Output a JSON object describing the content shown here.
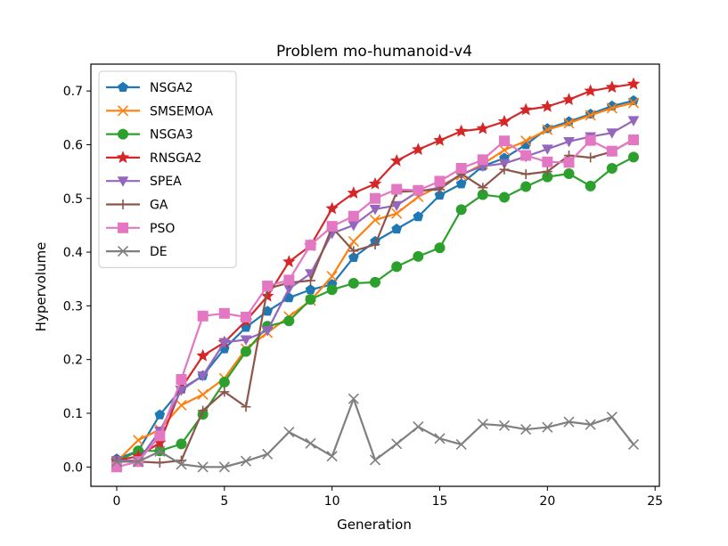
{
  "chart_data": {
    "type": "line",
    "title": "Problem mo-humanoid-v4",
    "xlabel": "Generation",
    "ylabel": "Hypervolume",
    "xlim": [
      -1.2,
      25.2
    ],
    "ylim": [
      -0.036,
      0.75
    ],
    "xticks": [
      0,
      5,
      10,
      15,
      20,
      25
    ],
    "yticks": [
      0.0,
      0.1,
      0.2,
      0.3,
      0.4,
      0.5,
      0.6,
      0.7
    ],
    "xtick_labels": [
      "0",
      "5",
      "10",
      "15",
      "20",
      "25"
    ],
    "ytick_labels": [
      "0.0",
      "0.1",
      "0.2",
      "0.3",
      "0.4",
      "0.5",
      "0.6",
      "0.7"
    ],
    "legend_position": "upper-left",
    "x": [
      0,
      1,
      2,
      3,
      4,
      5,
      6,
      7,
      8,
      9,
      10,
      11,
      12,
      13,
      14,
      15,
      16,
      17,
      18,
      19,
      20,
      21,
      22,
      23,
      24
    ],
    "series": [
      {
        "name": "NSGA2",
        "color": "#1f77b4",
        "marker": "pentagon",
        "values": [
          0.015,
          0.03,
          0.097,
          0.145,
          0.17,
          0.22,
          0.26,
          0.29,
          0.315,
          0.33,
          0.34,
          0.39,
          0.42,
          0.443,
          0.466,
          0.506,
          0.527,
          0.56,
          0.575,
          0.6,
          0.63,
          0.643,
          0.657,
          0.672,
          0.682
        ]
      },
      {
        "name": "SMSEMOA",
        "color": "#ff7f0e",
        "marker": "x",
        "values": [
          0.01,
          0.05,
          0.07,
          0.115,
          0.135,
          0.165,
          0.22,
          0.25,
          0.28,
          0.31,
          0.355,
          0.42,
          0.46,
          0.472,
          0.503,
          0.523,
          0.543,
          0.564,
          0.59,
          0.607,
          0.628,
          0.64,
          0.655,
          0.668,
          0.678
        ]
      },
      {
        "name": "NSGA3",
        "color": "#2ca02c",
        "marker": "circle",
        "values": [
          0.01,
          0.03,
          0.03,
          0.043,
          0.098,
          0.158,
          0.215,
          0.262,
          0.272,
          0.312,
          0.33,
          0.342,
          0.344,
          0.373,
          0.392,
          0.408,
          0.479,
          0.507,
          0.502,
          0.522,
          0.54,
          0.546,
          0.523,
          0.556,
          0.577
        ]
      },
      {
        "name": "RNSGA2",
        "color": "#d62728",
        "marker": "star",
        "values": [
          0.012,
          0.02,
          0.045,
          0.147,
          0.207,
          0.232,
          0.272,
          0.318,
          0.382,
          0.412,
          0.481,
          0.51,
          0.527,
          0.57,
          0.591,
          0.608,
          0.625,
          0.63,
          0.643,
          0.665,
          0.671,
          0.684,
          0.7,
          0.707,
          0.713
        ]
      },
      {
        "name": "SPEA",
        "color": "#9467bd",
        "marker": "triangle-down",
        "values": [
          0.012,
          0.012,
          0.067,
          0.143,
          0.17,
          0.232,
          0.237,
          0.254,
          0.332,
          0.36,
          0.435,
          0.45,
          0.48,
          0.487,
          0.513,
          0.52,
          0.545,
          0.56,
          0.565,
          0.578,
          0.592,
          0.606,
          0.615,
          0.622,
          0.645
        ]
      },
      {
        "name": "GA",
        "color": "#8c564b",
        "marker": "plus",
        "values": [
          0.01,
          0.01,
          0.008,
          0.012,
          0.105,
          0.14,
          0.112,
          0.332,
          0.343,
          0.347,
          0.446,
          0.402,
          0.414,
          0.512,
          0.514,
          0.517,
          0.546,
          0.52,
          0.554,
          0.545,
          0.55,
          0.58,
          0.576,
          0.587,
          0.61
        ]
      },
      {
        "name": "PSO",
        "color": "#e377c2",
        "marker": "square",
        "values": [
          0.0,
          0.01,
          0.058,
          0.163,
          0.281,
          0.286,
          0.279,
          0.337,
          0.348,
          0.413,
          0.448,
          0.467,
          0.5,
          0.517,
          0.515,
          0.532,
          0.556,
          0.572,
          0.607,
          0.58,
          0.568,
          0.567,
          0.608,
          0.588,
          0.609
        ]
      },
      {
        "name": "DE",
        "color": "#7f7f7f",
        "marker": "x",
        "values": [
          0.01,
          0.01,
          0.029,
          0.005,
          0.0,
          0.0,
          0.011,
          0.024,
          0.065,
          0.044,
          0.02,
          0.127,
          0.013,
          0.043,
          0.075,
          0.053,
          0.042,
          0.08,
          0.077,
          0.07,
          0.074,
          0.084,
          0.079,
          0.093,
          0.042
        ]
      }
    ]
  }
}
